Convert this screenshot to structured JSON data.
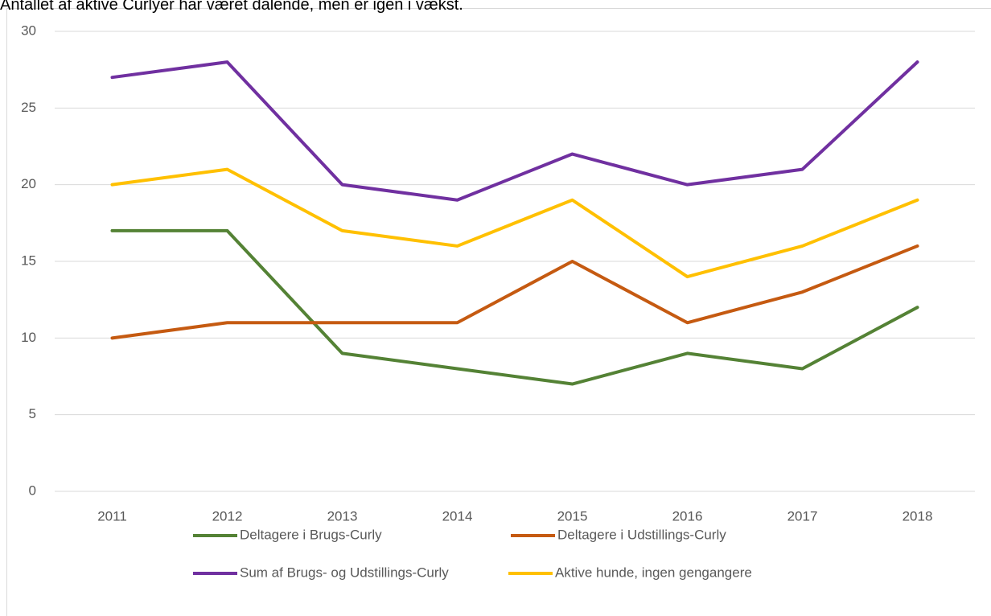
{
  "chart_data": {
    "type": "line",
    "title": "Antallet af aktive Curlyer har været dalende, men er igen i vækst.",
    "categories": [
      "2011",
      "2012",
      "2013",
      "2014",
      "2015",
      "2016",
      "2017",
      "2018"
    ],
    "series": [
      {
        "name": "Deltagere i Brugs-Curly",
        "color": "#548235",
        "values": [
          17,
          17,
          9,
          8,
          7,
          9,
          8,
          12
        ]
      },
      {
        "name": "Deltagere i Udstillings-Curly",
        "color": "#c55a11",
        "values": [
          10,
          11,
          11,
          11,
          15,
          11,
          13,
          16
        ]
      },
      {
        "name": "Sum af Brugs- og Udstillings-Curly",
        "color": "#7030a0",
        "values": [
          27,
          28,
          20,
          19,
          22,
          20,
          21,
          28
        ]
      },
      {
        "name": "Aktive hunde, ingen gengangere",
        "color": "#ffc000",
        "values": [
          20,
          21,
          17,
          16,
          19,
          14,
          16,
          19
        ]
      }
    ],
    "ylim": [
      0,
      30
    ],
    "yticks": [
      0,
      5,
      10,
      15,
      20,
      25,
      30
    ],
    "grid": true,
    "legend": "bottom"
  }
}
